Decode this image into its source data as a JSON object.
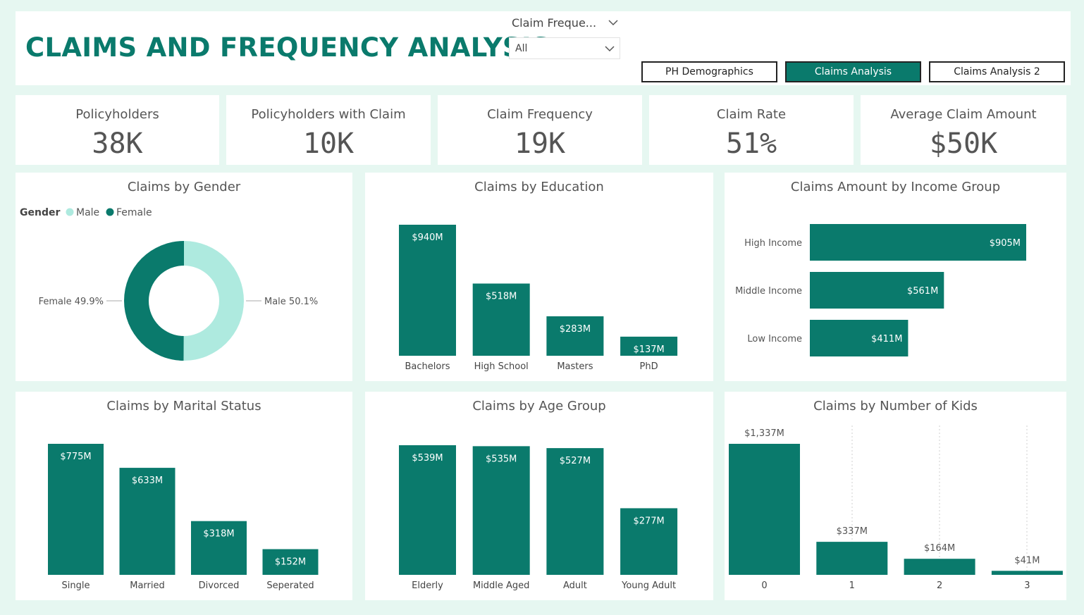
{
  "header": {
    "title": "CLAIMS AND FREQUENCY ANALYSIS",
    "slicer_label": "Claim Freque...",
    "slicer_value": "All"
  },
  "nav": {
    "buttons": [
      {
        "label": "PH Demographics",
        "active": false
      },
      {
        "label": "Claims Analysis",
        "active": true
      },
      {
        "label": "Claims Analysis 2",
        "active": false
      }
    ]
  },
  "kpis": [
    {
      "label": "Policyholders",
      "value": "38K"
    },
    {
      "label": "Policyholders with Claim",
      "value": "10K"
    },
    {
      "label": "Claim Frequency",
      "value": "19K"
    },
    {
      "label": "Claim Rate",
      "value": "51%"
    },
    {
      "label": "Average Claim Amount",
      "value": "$50K"
    }
  ],
  "colors": {
    "primary": "#0a7a6c",
    "light": "#aeeadf"
  },
  "chart_data": [
    {
      "type": "pie",
      "title": "Claims by Gender",
      "legend_title": "Gender",
      "legend_placement": "top-left",
      "slices": [
        {
          "label": "Male",
          "value": 50.1,
          "data_label": "Male 50.1%",
          "color": "#aeeadf"
        },
        {
          "label": "Female",
          "value": 49.9,
          "data_label": "Female 49.9%",
          "color": "#0a7a6c"
        }
      ]
    },
    {
      "type": "bar",
      "title": "Claims by Education",
      "categories": [
        "Bachelors",
        "High School",
        "Masters",
        "PhD"
      ],
      "values": [
        940,
        518,
        283,
        137
      ],
      "labels": [
        "$940M",
        "$518M",
        "$283M",
        "$137M"
      ]
    },
    {
      "type": "bar",
      "orientation": "horizontal",
      "title": "Claims Amount by Income Group",
      "categories": [
        "High Income",
        "Middle Income",
        "Low Income"
      ],
      "values": [
        905,
        561,
        411
      ],
      "labels": [
        "$905M",
        "$561M",
        "$411M"
      ]
    },
    {
      "type": "bar",
      "title": "Claims by Marital Status",
      "categories": [
        "Single",
        "Married",
        "Divorced",
        "Seperated"
      ],
      "values": [
        775,
        633,
        318,
        152
      ],
      "labels": [
        "$775M",
        "$633M",
        "$318M",
        "$152M"
      ]
    },
    {
      "type": "bar",
      "title": "Claims by Age Group",
      "categories": [
        "Elderly",
        "Middle Aged",
        "Adult",
        "Young Adult"
      ],
      "values": [
        539,
        535,
        527,
        277
      ],
      "labels": [
        "$539M",
        "$535M",
        "$527M",
        "$277M"
      ]
    },
    {
      "type": "bar",
      "title": "Claims by Number of Kids",
      "categories": [
        "0",
        "1",
        "2",
        "3"
      ],
      "values": [
        1337,
        337,
        164,
        41
      ],
      "labels": [
        "$1,337M",
        "$337M",
        "$164M",
        "$41M"
      ]
    }
  ]
}
